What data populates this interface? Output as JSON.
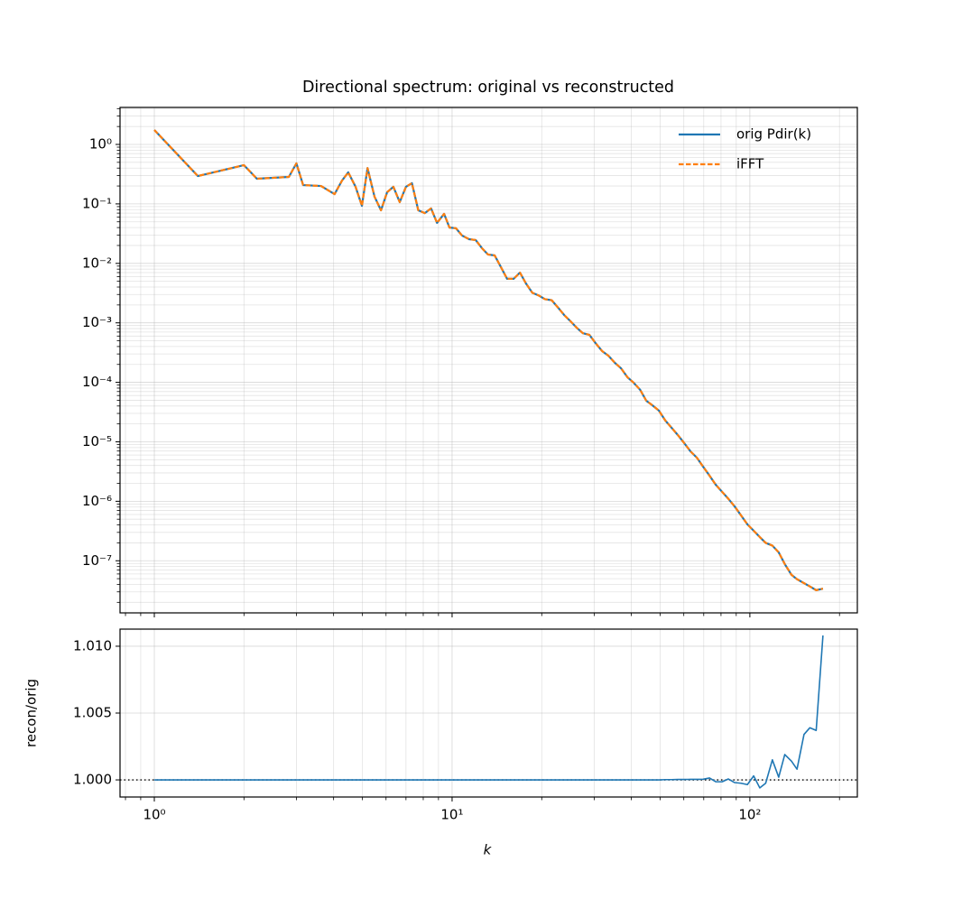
{
  "chart_data": [
    {
      "type": "line",
      "title": "Directional spectrum: original vs reconstructed",
      "xlog": true,
      "ylog": true,
      "grid": true,
      "legend": "upper right",
      "xticklabels": false,
      "xlim": [
        0.767,
        229.6
      ],
      "ylim": [
        1.33e-08,
        4.19
      ],
      "xticks": [
        {
          "value": 1,
          "label": "10⁰"
        },
        {
          "value": 10,
          "label": "10¹"
        },
        {
          "value": 100,
          "label": "10²"
        }
      ],
      "yticks": [
        {
          "value": 1,
          "label": "10⁰"
        },
        {
          "value": 0.1,
          "label": "10⁻¹"
        },
        {
          "value": 0.01,
          "label": "10⁻²"
        },
        {
          "value": 0.001,
          "label": "10⁻³"
        },
        {
          "value": 0.0001,
          "label": "10⁻⁴"
        },
        {
          "value": 1e-05,
          "label": "10⁻⁵"
        },
        {
          "value": 1e-06,
          "label": "10⁻⁶"
        },
        {
          "value": 1e-07,
          "label": "10⁻⁷"
        }
      ],
      "x": [
        1,
        1.4,
        2,
        2.21,
        2.83,
        3,
        3.16,
        3.63,
        4.03,
        4.27,
        4.48,
        4.74,
        4.98,
        5.2,
        5.49,
        5.77,
        6.05,
        6.35,
        6.67,
        7,
        7.33,
        7.7,
        8.1,
        8.5,
        8.9,
        9.4,
        9.8,
        10.3,
        10.8,
        11.4,
        12,
        12.6,
        13.2,
        13.9,
        14.6,
        15.3,
        16.1,
        16.9,
        17.7,
        18.6,
        19.5,
        20.5,
        21.6,
        22.7,
        23.8,
        25,
        26.2,
        27.5,
        28.9,
        30.4,
        31.9,
        33.5,
        35.2,
        36.9,
        38.8,
        40.7,
        42.8,
        44.9,
        47.1,
        49.5,
        52,
        54.6,
        57.3,
        60.2,
        63.2,
        66.4,
        69.7,
        73.2,
        76.8,
        80.7,
        84.7,
        88.9,
        93.4,
        98.1,
        103,
        108,
        113,
        119,
        125,
        131,
        138,
        144,
        152,
        159,
        167,
        176
      ],
      "series": [
        {
          "name": "orig Pdir(k)",
          "color": "#1f77b4",
          "dash": false,
          "values": [
            1.75,
            0.294,
            0.448,
            0.265,
            0.284,
            0.48,
            0.207,
            0.2,
            0.146,
            0.247,
            0.339,
            0.194,
            0.093,
            0.4,
            0.132,
            0.078,
            0.157,
            0.194,
            0.107,
            0.194,
            0.223,
            0.078,
            0.07,
            0.084,
            0.048,
            0.068,
            0.04,
            0.039,
            0.0294,
            0.0255,
            0.0247,
            0.018,
            0.0141,
            0.0136,
            0.0086,
            0.0055,
            0.0055,
            0.007,
            0.0046,
            0.0032,
            0.0029,
            0.0025,
            0.0024,
            0.0018,
            0.00135,
            0.00106,
            0.00083,
            0.00067,
            0.00063,
            0.00045,
            0.000335,
            0.00028,
            0.000213,
            0.000173,
            0.000122,
            9.86e-05,
            7.5e-05,
            4.9e-05,
            4.1e-05,
            3.34e-05,
            2.28e-05,
            1.72e-05,
            1.3e-05,
            9.5e-06,
            6.9e-06,
            5.4e-06,
            3.8e-06,
            2.7e-06,
            1.9e-06,
            1.44e-06,
            1.1e-06,
            8.2e-07,
            5.8e-07,
            4.1e-07,
            3.2e-07,
            2.5e-07,
            2e-07,
            1.8e-07,
            1.38e-07,
            8.8e-08,
            5.8e-08,
            4.9e-08,
            4.2e-08,
            3.7e-08,
            3.2e-08,
            3.4e-08
          ]
        },
        {
          "name": "iFFT",
          "color": "#ff7f0e",
          "dash": true,
          "values": [
            1.75,
            0.294,
            0.448,
            0.265,
            0.284,
            0.48,
            0.207,
            0.2,
            0.146,
            0.247,
            0.339,
            0.194,
            0.093,
            0.4,
            0.132,
            0.078,
            0.157,
            0.194,
            0.107,
            0.194,
            0.223,
            0.078,
            0.07,
            0.084,
            0.048,
            0.068,
            0.04,
            0.039,
            0.0294,
            0.0255,
            0.0247,
            0.018,
            0.0141,
            0.0136,
            0.0086,
            0.0055,
            0.0055,
            0.007,
            0.0046,
            0.0032,
            0.0029,
            0.0025,
            0.0024,
            0.0018,
            0.00135,
            0.00106,
            0.00083,
            0.00067,
            0.00063,
            0.00045,
            0.000335,
            0.00028,
            0.000213,
            0.000173,
            0.000122,
            9.86e-05,
            7.5e-05,
            4.9e-05,
            4.1e-05,
            3.34e-05,
            2.28e-05,
            1.72e-05,
            1.3e-05,
            9.5e-06,
            6.9e-06,
            5.4e-06,
            3.8e-06,
            2.7e-06,
            1.9e-06,
            1.44e-06,
            1.1e-06,
            8.2e-07,
            5.8e-07,
            4.1e-07,
            3.2e-07,
            2.5e-07,
            2e-07,
            1.8e-07,
            1.38e-07,
            8.8e-08,
            5.8e-08,
            4.9e-08,
            4.2e-08,
            3.7e-08,
            3.2e-08,
            3.4e-08
          ]
        }
      ]
    },
    {
      "type": "line",
      "xlabel": "k",
      "ylabel": "recon/orig",
      "xlog": true,
      "ylog": false,
      "grid": true,
      "hline": 1,
      "xlim": [
        0.767,
        229.6
      ],
      "ylim": [
        0.99872,
        1.01128
      ],
      "xticks": [
        {
          "value": 1,
          "label": "10⁰"
        },
        {
          "value": 10,
          "label": "10¹"
        },
        {
          "value": 100,
          "label": "10²"
        }
      ],
      "yticks": [
        {
          "value": 1,
          "label": "1.000"
        },
        {
          "value": 1.005,
          "label": "1.005"
        },
        {
          "value": 1.01,
          "label": "1.010"
        }
      ],
      "x": [
        1,
        1.4,
        2,
        2.21,
        2.83,
        3,
        3.16,
        3.63,
        4.03,
        4.27,
        4.48,
        4.74,
        4.98,
        5.2,
        5.49,
        5.77,
        6.05,
        6.35,
        6.67,
        7,
        7.33,
        7.7,
        8.1,
        8.5,
        8.9,
        9.4,
        9.8,
        10.3,
        10.8,
        11.4,
        12,
        12.6,
        13.2,
        13.9,
        14.6,
        15.3,
        16.1,
        16.9,
        17.7,
        18.6,
        19.5,
        20.5,
        21.6,
        22.7,
        23.8,
        25,
        26.2,
        27.5,
        28.9,
        30.4,
        31.9,
        33.5,
        35.2,
        36.9,
        38.8,
        40.7,
        42.8,
        44.9,
        47.1,
        49.5,
        52,
        54.6,
        57.3,
        60.2,
        63.2,
        66.4,
        69.7,
        73.2,
        76.8,
        80.7,
        84.7,
        88.9,
        93.4,
        98.1,
        103,
        108,
        113,
        119,
        125,
        131,
        138,
        144,
        152,
        159,
        167,
        176
      ],
      "series": [
        {
          "color": "#1f77b4",
          "dash": false,
          "values": [
            1,
            1,
            1,
            1,
            1,
            1,
            1,
            1,
            1,
            1,
            1,
            1,
            1,
            1,
            1,
            1,
            1,
            1,
            1,
            1,
            1,
            1,
            1,
            1,
            1,
            1,
            1,
            1,
            1,
            1,
            1,
            1,
            1,
            1,
            1,
            1,
            1,
            1,
            1,
            1,
            1,
            1,
            1,
            1,
            1,
            1,
            1,
            1,
            1,
            1,
            1,
            1,
            1,
            1,
            1,
            1,
            1,
            1,
            1,
            1,
            1.00002,
            1.00002,
            1.00003,
            1.00003,
            1.00004,
            1.00004,
            1.00005,
            1.00014,
            0.99986,
            0.99986,
            1.00007,
            0.9998,
            0.99975,
            0.99965,
            1.0003,
            0.9994,
            0.99975,
            1.0015,
            1.0002,
            1.0019,
            1.0014,
            1.0008,
            1.0034,
            1.0039,
            1.0037,
            1.0108
          ]
        }
      ]
    }
  ]
}
